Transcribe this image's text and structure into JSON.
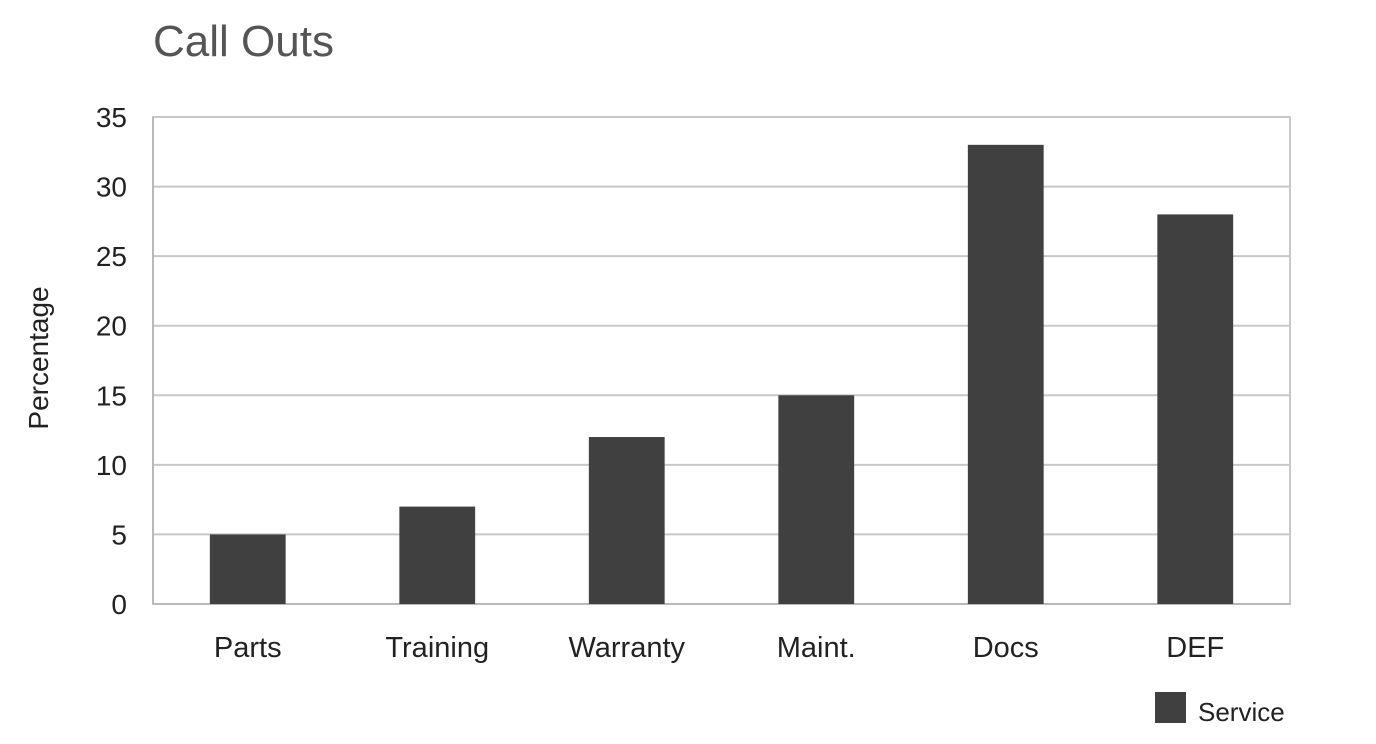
{
  "chart_data": {
    "type": "bar",
    "title": "Call Outs",
    "xlabel": "",
    "ylabel": "Percentage",
    "categories": [
      "Parts",
      "Training",
      "Warranty",
      "Maint.",
      "Docs",
      "DEF"
    ],
    "series": [
      {
        "name": "Service",
        "values": [
          5,
          7,
          12,
          15,
          33,
          28
        ],
        "color": "#404040"
      }
    ],
    "ylim": [
      0,
      35
    ],
    "yticks": [
      0,
      5,
      10,
      15,
      20,
      25,
      30,
      35
    ],
    "grid": true,
    "legend_position": "bottom-right"
  }
}
